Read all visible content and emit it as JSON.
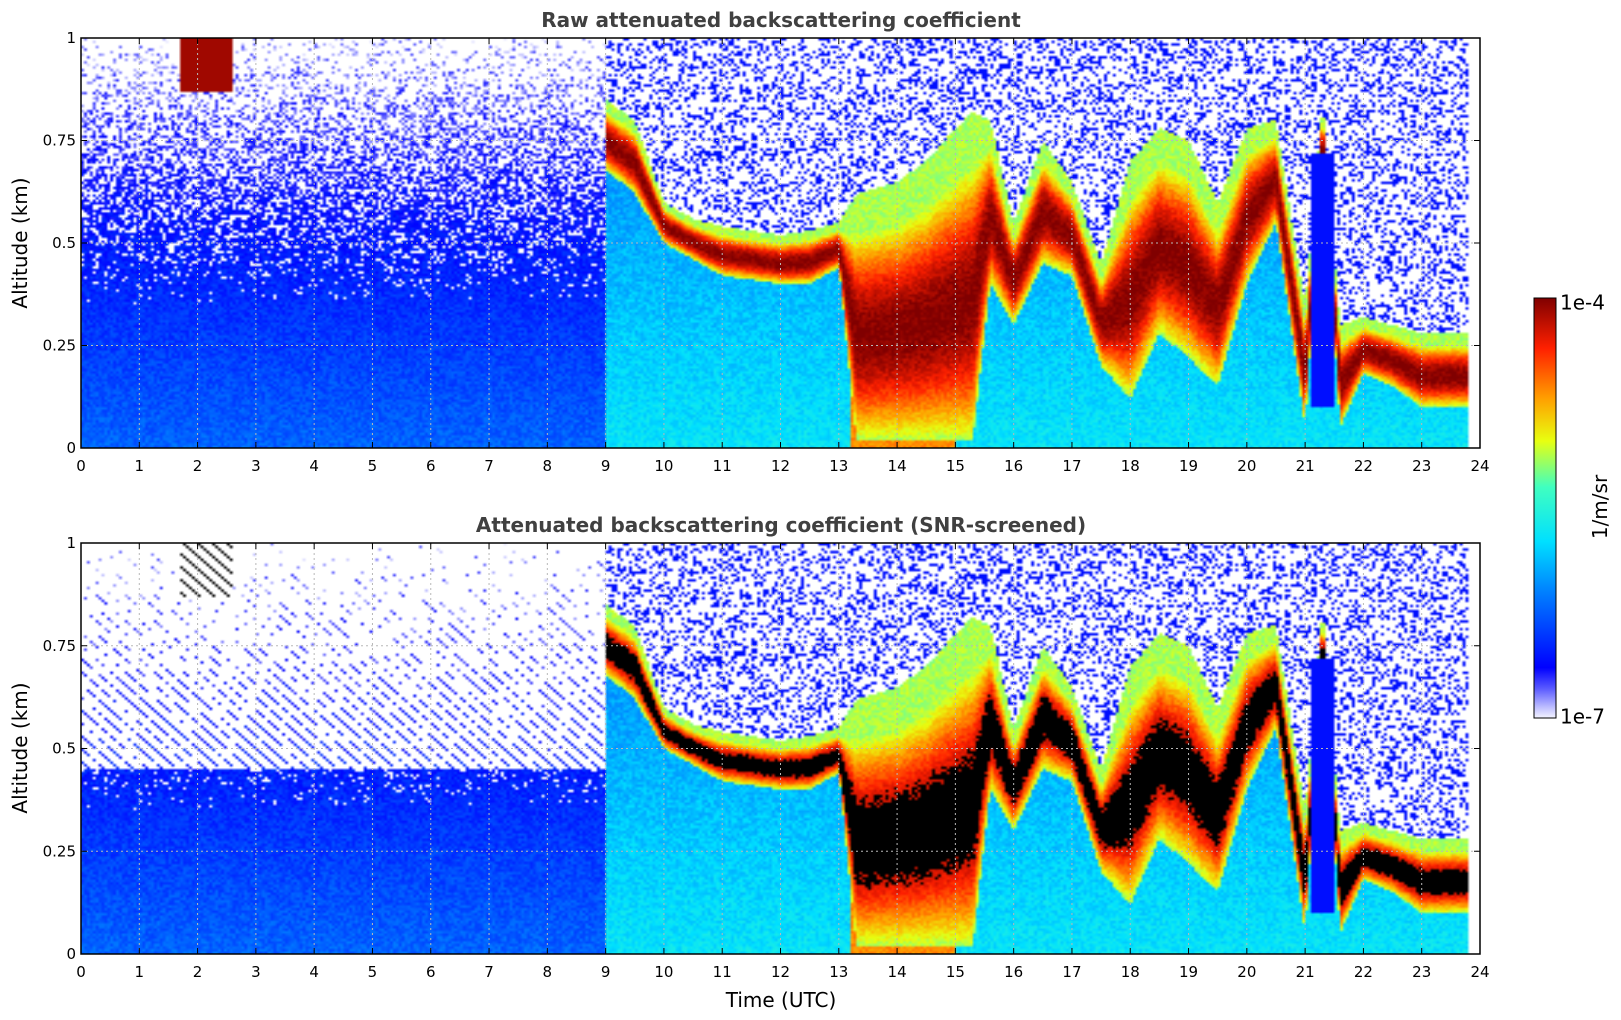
{
  "chart_data": [
    {
      "type": "heatmap",
      "title": "Raw attenuated backscattering coefficient",
      "ylabel": "Altitude (km)",
      "xlabel": "",
      "xlim": [
        0,
        24
      ],
      "ylim": [
        0,
        1
      ],
      "xticks": [
        "0",
        "1",
        "2",
        "3",
        "4",
        "5",
        "6",
        "7",
        "8",
        "9",
        "10",
        "11",
        "12",
        "13",
        "14",
        "15",
        "16",
        "17",
        "18",
        "19",
        "20",
        "21",
        "22",
        "23",
        "24"
      ],
      "yticks": [
        "0",
        "0.25",
        "0.5",
        "0.75",
        "1"
      ],
      "grid": true,
      "screened": false,
      "cloud_layer": {
        "time": [
          0,
          9,
          9.5,
          10,
          10.5,
          11,
          12,
          12.5,
          13,
          13.3,
          14,
          14.5,
          15,
          15.3,
          15.6,
          16,
          16.5,
          17,
          17.5,
          18,
          18.5,
          19,
          19.5,
          20,
          20.5,
          21,
          21.3,
          21.6,
          22,
          22.5,
          23,
          23.8
        ],
        "base_km": [
          null,
          0.68,
          0.62,
          0.5,
          0.46,
          0.42,
          0.4,
          0.4,
          0.44,
          0.02,
          0.02,
          0.02,
          0.02,
          0.02,
          0.4,
          0.3,
          0.45,
          0.42,
          0.2,
          0.12,
          0.28,
          0.22,
          0.15,
          0.4,
          0.55,
          0.05,
          0.72,
          0.05,
          0.18,
          0.15,
          0.1,
          0.1
        ],
        "top_km": [
          null,
          0.85,
          0.8,
          0.6,
          0.56,
          0.54,
          0.52,
          0.53,
          0.55,
          0.62,
          0.65,
          0.7,
          0.78,
          0.82,
          0.8,
          0.55,
          0.75,
          0.65,
          0.45,
          0.7,
          0.78,
          0.75,
          0.6,
          0.78,
          0.8,
          0.35,
          0.85,
          0.3,
          0.32,
          0.3,
          0.28,
          0.28
        ]
      }
    },
    {
      "type": "heatmap",
      "title": "Attenuated backscattering coefficient (SNR-screened)",
      "ylabel": "Altitude (km)",
      "xlabel": "Time (UTC)",
      "xlim": [
        0,
        24
      ],
      "ylim": [
        0,
        1
      ],
      "xticks": [
        "0",
        "1",
        "2",
        "3",
        "4",
        "5",
        "6",
        "7",
        "8",
        "9",
        "10",
        "11",
        "12",
        "13",
        "14",
        "15",
        "16",
        "17",
        "18",
        "19",
        "20",
        "21",
        "22",
        "23",
        "24"
      ],
      "yticks": [
        "0",
        "0.25",
        "0.5",
        "0.75",
        "1"
      ],
      "grid": true,
      "screened": true
    }
  ],
  "colorbar": {
    "max_label": "1e-4",
    "min_label": "1e-7",
    "unit": "1/m/sr",
    "colormap": "jet",
    "scale": "log"
  }
}
